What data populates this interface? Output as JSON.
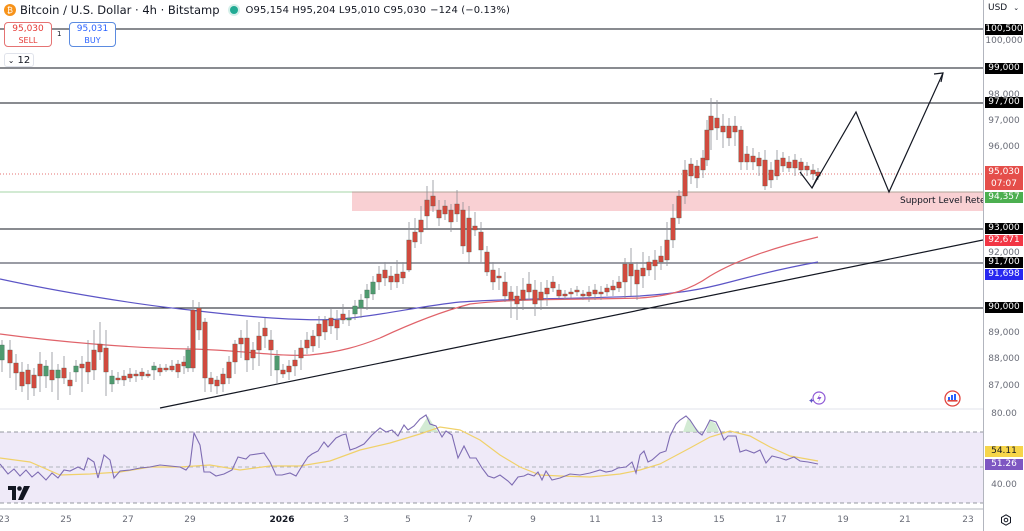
{
  "header": {
    "symbol_icon": "bitcoin-logo",
    "title": "Bitcoin / U.S. Dollar · 4h · Bitstamp",
    "market_status": "open",
    "ohlc": "O95,154 H95,204 L95,010 C95,030",
    "change": "−124 (−0.13%)"
  },
  "trade": {
    "sell_price": "95,030",
    "sell_label": "SELL",
    "buy_price": "95,031",
    "buy_label": "BUY",
    "spread": "1",
    "indicators_collapse": "12"
  },
  "price_axis": {
    "currency": "USD",
    "ticks": [
      "100,000",
      "98,000",
      "97,000",
      "96,000",
      "92,000",
      "89,000",
      "88,000",
      "87,000"
    ],
    "tags": {
      "r1": "100,500",
      "r2": "99,000",
      "r3": "97,700",
      "last_price": "95,030",
      "countdown": "07:07",
      "support": "94,357",
      "s1": "93,000",
      "ema_red": "92,671",
      "s2": "91,700",
      "ema_blue": "91,698",
      "s3": "90,000"
    }
  },
  "rsi_axis": {
    "ticks": [
      "80.00",
      "40.00"
    ],
    "rsi_ma": "54.11",
    "rsi": "51.26"
  },
  "time_axis": {
    "labels": [
      "23",
      "25",
      "27",
      "29",
      "2026",
      "3",
      "5",
      "7",
      "9",
      "11",
      "13",
      "15",
      "17",
      "19",
      "21",
      "23"
    ]
  },
  "annotations": {
    "support_zone_label": "Support Level Retest"
  },
  "colors": {
    "up": "#4f9a6f",
    "down": "#d04a3e",
    "ema_red": "#e0636a",
    "ema_blue": "#5c55c6",
    "support_zone": "#f9d0d3",
    "rsi_line": "#7e6cb3",
    "rsi_ma": "#f0d16a",
    "rsi_bg": "#efeaf8"
  },
  "chart_data": {
    "type": "candlestick",
    "title": "Bitcoin / U.S. Dollar · 4h · Bitstamp",
    "xlabel": "",
    "ylabel": "USD",
    "ylim": [
      86500,
      101000
    ],
    "x_ticks": [
      "23",
      "25",
      "27",
      "29",
      "2026",
      "3",
      "5",
      "7",
      "9",
      "11",
      "13",
      "15",
      "17",
      "19",
      "21",
      "23"
    ],
    "last": {
      "open": 95154,
      "high": 95204,
      "low": 95010,
      "close": 95030,
      "change": -124,
      "change_pct": -0.13
    },
    "horizontal_levels": [
      100500,
      99000,
      97700,
      93000,
      91700,
      90000
    ],
    "support_zone": {
      "from": 93600,
      "to": 94357,
      "label": "Support Level Retest"
    },
    "trendline": {
      "from": {
        "x": "Dec 28",
        "y": 86800
      },
      "to": {
        "x": "Jan 23",
        "y": 93000
      }
    },
    "moving_averages": [
      {
        "name": "EMA (red)",
        "last": 92671
      },
      {
        "name": "EMA (blue)",
        "last": 91698
      }
    ],
    "projection_path": [
      95030,
      94400,
      97400,
      94400,
      99800
    ],
    "candles_approx": [
      {
        "t": "Dec 23",
        "close": 88200
      },
      {
        "t": "Dec 24",
        "close": 87500
      },
      {
        "t": "Dec 25",
        "close": 87300
      },
      {
        "t": "Dec 26",
        "close": 88300
      },
      {
        "t": "Dec 27",
        "close": 87600
      },
      {
        "t": "Dec 28",
        "close": 87700
      },
      {
        "t": "Dec 29",
        "close": 89700
      },
      {
        "t": "Dec 30",
        "close": 87800
      },
      {
        "t": "Dec 31",
        "close": 88200
      },
      {
        "t": "Jan 1",
        "close": 88500
      },
      {
        "t": "Jan 2",
        "close": 89900
      },
      {
        "t": "Jan 3",
        "close": 90400
      },
      {
        "t": "Jan 4",
        "close": 91400
      },
      {
        "t": "Jan 5",
        "close": 93300
      },
      {
        "t": "Jan 6",
        "close": 94300
      },
      {
        "t": "Jan 7",
        "close": 92000
      },
      {
        "t": "Jan 8",
        "close": 90700
      },
      {
        "t": "Jan 9",
        "close": 90300
      },
      {
        "t": "Jan 10",
        "close": 90500
      },
      {
        "t": "Jan 11",
        "close": 90600
      },
      {
        "t": "Jan 12",
        "close": 91200
      },
      {
        "t": "Jan 13",
        "close": 92000
      },
      {
        "t": "Jan 14",
        "close": 96300
      },
      {
        "t": "Jan 15",
        "close": 96800
      },
      {
        "t": "Jan 16",
        "close": 95400
      },
      {
        "t": "Jan 17",
        "close": 95500
      },
      {
        "t": "Jan 18",
        "close": 95030
      }
    ],
    "rsi": {
      "ylim": [
        20,
        90
      ],
      "levels": [
        70,
        50,
        30
      ],
      "last_rsi": 51.26,
      "last_ma": 54.11
    }
  }
}
